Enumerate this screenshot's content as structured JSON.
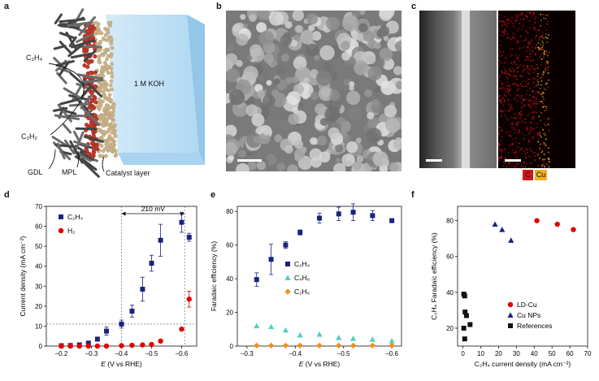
{
  "panels": {
    "a": {
      "letter": "a",
      "labels": {
        "c2h4": "C₂H₄",
        "c2h2": "C₂H₂",
        "koh": "1 M KOH",
        "gdl": "GDL",
        "mpl": "MPL",
        "catalyst": "Catalyst layer"
      },
      "colors": {
        "gdl": "#555555",
        "mpl": "#c0392b",
        "catalyst": "#c9b48a",
        "electrolyte": "#bfe0f5"
      }
    },
    "b": {
      "letter": "b"
    },
    "c": {
      "letter": "c",
      "legend": [
        "C",
        "Cu"
      ],
      "legend_colors": [
        "#d4141c",
        "#f2b01e"
      ]
    },
    "d": {
      "letter": "d"
    },
    "e": {
      "letter": "e"
    },
    "f": {
      "letter": "f"
    }
  },
  "chart_data": [
    {
      "id": "d",
      "type": "scatter",
      "xlabel_var": "E",
      "xlabel_rest": " (V vs RHE)",
      "ylabel": "Current density (mA cm⁻²)",
      "xlim": [
        -0.15,
        -0.65
      ],
      "ylim": [
        0,
        70
      ],
      "xticks": [
        -0.2,
        -0.3,
        -0.4,
        -0.5,
        -0.6
      ],
      "xticklabels": [
        "–0.2",
        "–0.3",
        "–0.4",
        "–0.5",
        "–0.6"
      ],
      "yticks": [
        0,
        10,
        20,
        30,
        40,
        50,
        60,
        70
      ],
      "annotation": "210 mV",
      "annotation_range": [
        -0.4,
        -0.61
      ],
      "guide_y": 11,
      "series": [
        {
          "name": "C₂H₄",
          "color": "#1a237e",
          "marker": "square",
          "x": [
            -0.2,
            -0.23,
            -0.26,
            -0.29,
            -0.32,
            -0.35,
            -0.4,
            -0.435,
            -0.47,
            -0.5,
            -0.53,
            -0.6,
            -0.625
          ],
          "y": [
            0.2,
            0.3,
            0.6,
            1.5,
            3.5,
            7.5,
            11,
            17.5,
            28.5,
            41.5,
            53,
            62,
            54.5
          ],
          "err": [
            0.2,
            0.2,
            0.3,
            0.6,
            1,
            2,
            2,
            3,
            6,
            4,
            8,
            5,
            2
          ]
        },
        {
          "name": "H₂",
          "color": "#e00000",
          "marker": "circle",
          "x": [
            -0.2,
            -0.23,
            -0.26,
            -0.29,
            -0.32,
            -0.35,
            -0.4,
            -0.435,
            -0.47,
            -0.5,
            -0.53,
            -0.6,
            -0.625
          ],
          "y": [
            0,
            0,
            0,
            0,
            0,
            0,
            0.2,
            0.4,
            0.6,
            0.8,
            2.5,
            8.5,
            23.5
          ],
          "err": [
            0,
            0,
            0,
            0,
            0,
            0,
            0,
            0,
            0,
            0,
            0,
            0,
            4
          ]
        }
      ]
    },
    {
      "id": "e",
      "type": "scatter",
      "xlabel_var": "E",
      "xlabel_rest": " (V vs RHE)",
      "ylabel": "Faradaic efficiency (%)",
      "xlim": [
        -0.28,
        -0.62
      ],
      "ylim": [
        0,
        83
      ],
      "xticks": [
        -0.3,
        -0.4,
        -0.5,
        -0.6
      ],
      "xticklabels": [
        "–0.3",
        "–0.4",
        "–0.5",
        "–0.6"
      ],
      "yticks": [
        0,
        20,
        40,
        60,
        80
      ],
      "series": [
        {
          "name": "C₂H₄",
          "color": "#1a237e",
          "marker": "square",
          "x": [
            -0.32,
            -0.35,
            -0.38,
            -0.41,
            -0.45,
            -0.49,
            -0.52,
            -0.56,
            -0.6
          ],
          "y": [
            39.5,
            51.5,
            60,
            67.5,
            76,
            78.5,
            79.5,
            77.5,
            74.5
          ],
          "err": [
            4,
            9,
            2,
            1.5,
            3,
            4,
            5,
            3,
            1
          ]
        },
        {
          "name": "C₄H₆",
          "color": "#4dd0c4",
          "marker": "triangle",
          "x": [
            -0.32,
            -0.35,
            -0.38,
            -0.41,
            -0.45,
            -0.49,
            -0.52,
            -0.56,
            -0.6
          ],
          "y": [
            12,
            11.5,
            9.5,
            6.5,
            7,
            5,
            4.5,
            4,
            3
          ]
        },
        {
          "name": "C₂H₆",
          "color": "#f28c1c",
          "marker": "diamond",
          "x": [
            -0.32,
            -0.35,
            -0.38,
            -0.41,
            -0.45,
            -0.49,
            -0.52,
            -0.56,
            -0.6
          ],
          "y": [
            0.3,
            0.3,
            0.3,
            0.3,
            0.3,
            0.3,
            0.3,
            0.3,
            0.3
          ]
        }
      ]
    },
    {
      "id": "f",
      "type": "scatter",
      "xlabel": "C₂H₄ current density (mA cm⁻²)",
      "ylabel": "C₂H₄ Faradaic efficiency (%)",
      "xlim": [
        -3,
        70
      ],
      "ylim": [
        10,
        88
      ],
      "xticks": [
        0,
        10,
        20,
        30,
        40,
        50,
        60,
        70
      ],
      "yticks": [
        20,
        40,
        60,
        80
      ],
      "series": [
        {
          "name": "LD-Cu",
          "color": "#e00000",
          "marker": "circle",
          "x": [
            41.5,
            53,
            62
          ],
          "y": [
            80,
            78,
            75
          ]
        },
        {
          "name": "Cu NPs",
          "color": "#1a237e",
          "marker": "triangle",
          "x": [
            18,
            22,
            27
          ],
          "y": [
            78,
            75,
            69
          ]
        },
        {
          "name": "References",
          "color": "#111111",
          "marker": "square",
          "x": [
            0.5,
            1,
            1.2,
            2,
            1,
            4,
            0.5
          ],
          "y": [
            39,
            38,
            29,
            27,
            14,
            22,
            20
          ]
        }
      ]
    }
  ]
}
